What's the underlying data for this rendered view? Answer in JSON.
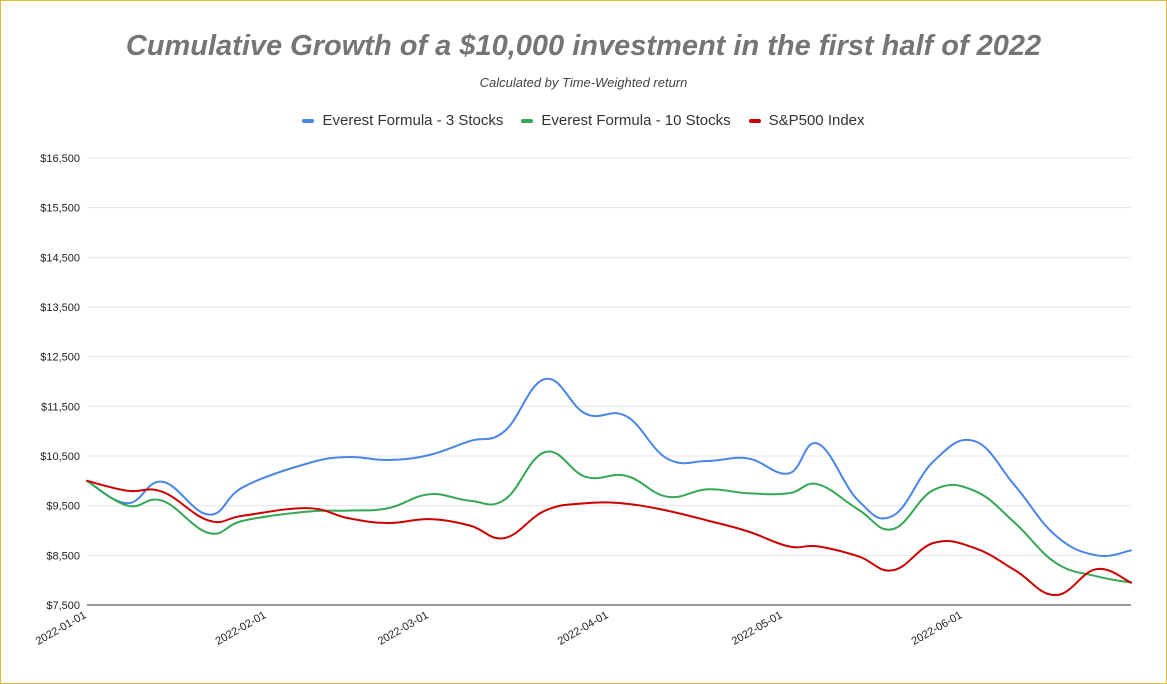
{
  "chart_data": {
    "type": "line",
    "title": "Cumulative Growth of a $10,000 investment in the first half of 2022",
    "subtitle": "Calculated by Time-Weighted return",
    "ylim": [
      7500,
      16500
    ],
    "yticks": [
      16500,
      15500,
      14500,
      13500,
      12500,
      11500,
      10500,
      9500,
      8500,
      7500
    ],
    "ytick_labels": [
      "$16,500",
      "$15,500",
      "$14,500",
      "$13,500",
      "$12,500",
      "$11,500",
      "$10,500",
      "$9,500",
      "$8,500",
      "$7,500"
    ],
    "xlim": [
      "2022-01-01",
      "2022-06-30"
    ],
    "xtick_labels": [
      "2022-01-01",
      "2022-02-01",
      "2022-03-01",
      "2022-04-01",
      "2022-05-01",
      "2022-06-01"
    ],
    "legend_position": "top",
    "grid": true,
    "series": [
      {
        "name": "Everest Formula - 3 Stocks",
        "color": "#4a86e8",
        "points": [
          [
            "2022-01-01",
            10000
          ],
          [
            "2022-01-08",
            9550
          ],
          [
            "2022-01-14",
            9980
          ],
          [
            "2022-01-22",
            9320
          ],
          [
            "2022-01-28",
            9880
          ],
          [
            "2022-02-08",
            10350
          ],
          [
            "2022-02-15",
            10480
          ],
          [
            "2022-02-22",
            10420
          ],
          [
            "2022-03-01",
            10520
          ],
          [
            "2022-03-08",
            10800
          ],
          [
            "2022-03-14",
            11000
          ],
          [
            "2022-03-21",
            12050
          ],
          [
            "2022-03-28",
            11350
          ],
          [
            "2022-04-04",
            11300
          ],
          [
            "2022-04-11",
            10450
          ],
          [
            "2022-04-18",
            10400
          ],
          [
            "2022-04-25",
            10450
          ],
          [
            "2022-05-02",
            10150
          ],
          [
            "2022-05-07",
            10750
          ],
          [
            "2022-05-14",
            9600
          ],
          [
            "2022-05-20",
            9300
          ],
          [
            "2022-05-27",
            10400
          ],
          [
            "2022-06-03",
            10800
          ],
          [
            "2022-06-10",
            9900
          ],
          [
            "2022-06-17",
            8900
          ],
          [
            "2022-06-24",
            8500
          ],
          [
            "2022-06-30",
            8600
          ]
        ]
      },
      {
        "name": "Everest Formula - 10 Stocks",
        "color": "#34a853",
        "points": [
          [
            "2022-01-01",
            10000
          ],
          [
            "2022-01-08",
            9500
          ],
          [
            "2022-01-14",
            9600
          ],
          [
            "2022-01-22",
            8950
          ],
          [
            "2022-01-28",
            9200
          ],
          [
            "2022-02-08",
            9380
          ],
          [
            "2022-02-15",
            9400
          ],
          [
            "2022-02-22",
            9450
          ],
          [
            "2022-03-01",
            9730
          ],
          [
            "2022-03-08",
            9600
          ],
          [
            "2022-03-14",
            9620
          ],
          [
            "2022-03-21",
            10580
          ],
          [
            "2022-03-28",
            10080
          ],
          [
            "2022-04-04",
            10100
          ],
          [
            "2022-04-11",
            9680
          ],
          [
            "2022-04-18",
            9830
          ],
          [
            "2022-04-25",
            9750
          ],
          [
            "2022-05-02",
            9750
          ],
          [
            "2022-05-07",
            9930
          ],
          [
            "2022-05-14",
            9420
          ],
          [
            "2022-05-20",
            9030
          ],
          [
            "2022-05-27",
            9820
          ],
          [
            "2022-06-03",
            9800
          ],
          [
            "2022-06-10",
            9150
          ],
          [
            "2022-06-17",
            8350
          ],
          [
            "2022-06-24",
            8080
          ],
          [
            "2022-06-30",
            7950
          ]
        ]
      },
      {
        "name": "S&P500 Index",
        "color": "#cc0000",
        "points": [
          [
            "2022-01-01",
            10000
          ],
          [
            "2022-01-08",
            9800
          ],
          [
            "2022-01-14",
            9780
          ],
          [
            "2022-01-22",
            9200
          ],
          [
            "2022-01-28",
            9300
          ],
          [
            "2022-02-08",
            9450
          ],
          [
            "2022-02-15",
            9250
          ],
          [
            "2022-02-22",
            9150
          ],
          [
            "2022-03-01",
            9230
          ],
          [
            "2022-03-08",
            9100
          ],
          [
            "2022-03-14",
            8850
          ],
          [
            "2022-03-21",
            9400
          ],
          [
            "2022-03-28",
            9550
          ],
          [
            "2022-04-04",
            9540
          ],
          [
            "2022-04-11",
            9400
          ],
          [
            "2022-04-18",
            9200
          ],
          [
            "2022-04-25",
            8980
          ],
          [
            "2022-05-02",
            8680
          ],
          [
            "2022-05-07",
            8680
          ],
          [
            "2022-05-14",
            8480
          ],
          [
            "2022-05-20",
            8200
          ],
          [
            "2022-05-27",
            8750
          ],
          [
            "2022-06-03",
            8650
          ],
          [
            "2022-06-10",
            8200
          ],
          [
            "2022-06-17",
            7700
          ],
          [
            "2022-06-24",
            8220
          ],
          [
            "2022-06-30",
            7950
          ]
        ]
      }
    ]
  }
}
